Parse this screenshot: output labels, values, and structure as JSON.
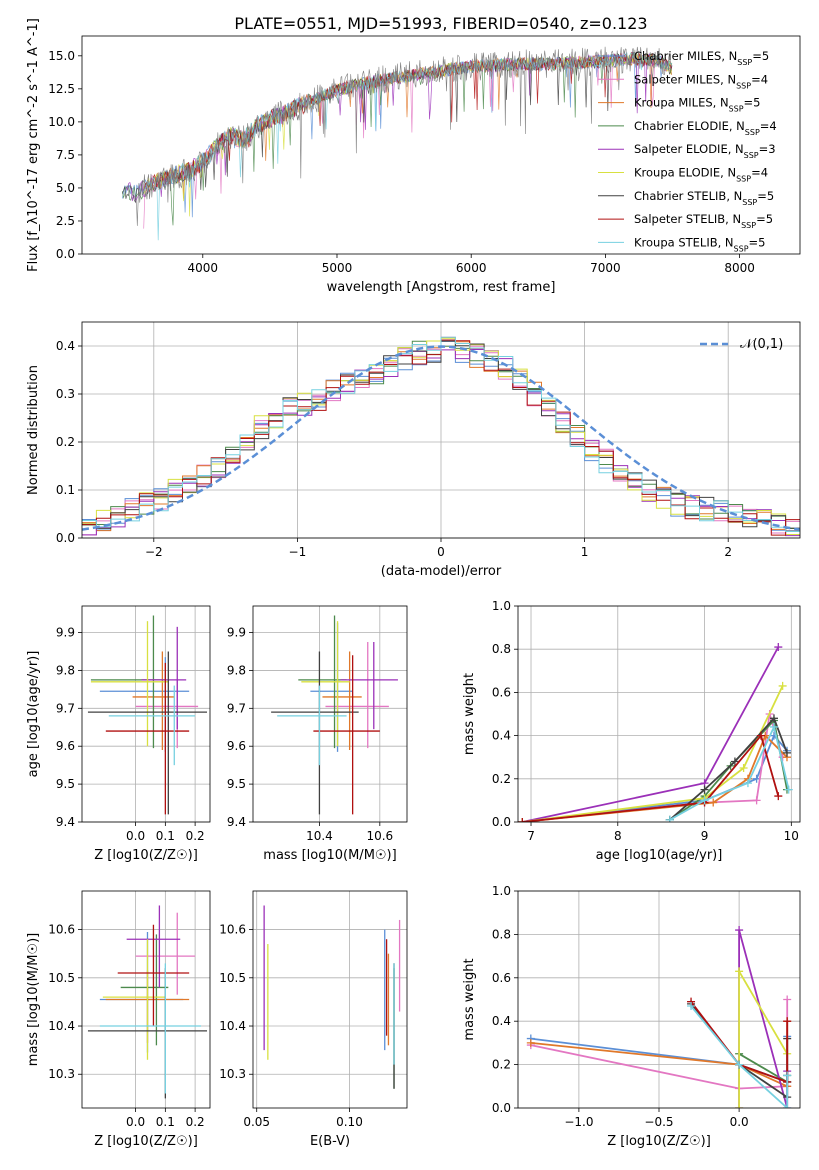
{
  "title": "PLATE=0551, MJD=51993, FIBERID=0540, z=0.123",
  "models": [
    {
      "name": "Chabrier MILES",
      "nssp": "5",
      "color": "#5b8fd6"
    },
    {
      "name": "Salpeter MILES",
      "nssp": "4",
      "color": "#e377c2"
    },
    {
      "name": "Kroupa MILES",
      "nssp": "5",
      "color": "#e0782a"
    },
    {
      "name": "Chabrier ELODIE",
      "nssp": "4",
      "color": "#4c8a4c"
    },
    {
      "name": "Salpeter ELODIE",
      "nssp": "3",
      "color": "#9b30b8"
    },
    {
      "name": "Kroupa ELODIE",
      "nssp": "4",
      "color": "#d8e040"
    },
    {
      "name": "Chabrier STELIB",
      "nssp": "5",
      "color": "#404040"
    },
    {
      "name": "Salpeter STELIB",
      "nssp": "5",
      "color": "#b01010"
    },
    {
      "name": "Kroupa STELIB",
      "nssp": "5",
      "color": "#76d0e0"
    }
  ],
  "chart_data": [
    {
      "id": "spectrum",
      "type": "line",
      "xlabel": "wavelength [Angstrom, rest frame]",
      "ylabel": "Flux [f_λ10^-17 erg cm^-2 s^-1 A^-1]",
      "xlim": [
        3100,
        8450
      ],
      "ylim": [
        0,
        16.5
      ],
      "xticks": [
        4000,
        5000,
        6000,
        7000,
        8000
      ],
      "yticks": [
        "0.0",
        "2.5",
        "5.0",
        "7.5",
        "10.0",
        "12.5",
        "15.0"
      ],
      "grid": false,
      "legend": "upper right",
      "x": [
        3400,
        3500,
        3600,
        3700,
        3800,
        3900,
        4000,
        4100,
        4200,
        4300,
        4400,
        4500,
        4600,
        4700,
        4800,
        4900,
        5000,
        5200,
        5400,
        5600,
        5800,
        6000,
        6200,
        6400,
        6600,
        6800,
        7000,
        7200,
        7400,
        7500
      ],
      "y": [
        4.9,
        4.6,
        5.2,
        5.6,
        6.0,
        6.3,
        7.0,
        8.1,
        9.0,
        8.6,
        9.7,
        10.2,
        10.6,
        11.1,
        11.5,
        12.0,
        12.4,
        12.9,
        13.3,
        13.6,
        13.9,
        14.2,
        14.3,
        14.4,
        14.4,
        14.5,
        14.6,
        14.8,
        14.6,
        14.0
      ]
    },
    {
      "id": "residuals",
      "type": "bar",
      "xlabel": "(data-model)/error",
      "ylabel": "Normed distribution",
      "xlim": [
        -2.5,
        2.5
      ],
      "ylim": [
        0,
        0.45
      ],
      "xticks": [
        "−2",
        "−1",
        "0",
        "1",
        "2"
      ],
      "yticks": [
        "0.0",
        "0.1",
        "0.2",
        "0.3",
        "0.4"
      ],
      "grid": true,
      "legend": "upper right",
      "curve_label": "𝒩(0,1)",
      "bin_width": 0.1,
      "bins": [
        -2.45,
        -2.35,
        -2.25,
        -2.15,
        -2.05,
        -1.95,
        -1.85,
        -1.75,
        -1.65,
        -1.55,
        -1.45,
        -1.35,
        -1.25,
        -1.15,
        -1.05,
        -0.95,
        -0.85,
        -0.75,
        -0.65,
        -0.55,
        -0.45,
        -0.35,
        -0.25,
        -0.15,
        -0.05,
        0.05,
        0.15,
        0.25,
        0.35,
        0.45,
        0.55,
        0.65,
        0.75,
        0.85,
        0.95,
        1.05,
        1.15,
        1.25,
        1.35,
        1.45,
        1.55,
        1.65,
        1.75,
        1.85,
        1.95,
        2.05,
        2.15,
        2.25,
        2.35,
        2.45
      ],
      "values": [
        0.025,
        0.035,
        0.045,
        0.06,
        0.07,
        0.08,
        0.1,
        0.11,
        0.13,
        0.15,
        0.17,
        0.2,
        0.23,
        0.25,
        0.27,
        0.28,
        0.29,
        0.31,
        0.32,
        0.33,
        0.345,
        0.36,
        0.375,
        0.385,
        0.39,
        0.395,
        0.39,
        0.38,
        0.37,
        0.355,
        0.33,
        0.3,
        0.27,
        0.24,
        0.21,
        0.18,
        0.16,
        0.14,
        0.115,
        0.1,
        0.085,
        0.07,
        0.065,
        0.06,
        0.055,
        0.05,
        0.04,
        0.035,
        0.03,
        0.025
      ]
    },
    {
      "id": "age_vs_Z",
      "type": "scatter",
      "xlabel": "Z [log10(Z/Z☉)]",
      "ylabel": "age  [log10(age/yr)]",
      "xlim": [
        -0.18,
        0.25
      ],
      "ylim": [
        9.4,
        9.97
      ],
      "xticks": [
        "0.0",
        "0.1",
        "0.2"
      ],
      "yticks": [
        "9.4",
        "9.5",
        "9.6",
        "9.7",
        "9.8",
        "9.9"
      ],
      "grid": true,
      "points": [
        {
          "x": 0.1,
          "y": 9.745,
          "xerr": [
            0.22,
            0.08
          ],
          "yerr": [
            0.16,
            0.09
          ]
        },
        {
          "x": 0.14,
          "y": 9.705,
          "xerr": [
            0.14,
            0.07
          ],
          "yerr": [
            0.11,
            0.07
          ]
        },
        {
          "x": 0.09,
          "y": 9.73,
          "xerr": [
            0.1,
            0.04
          ],
          "yerr": [
            0.14,
            0.12
          ]
        },
        {
          "x": 0.06,
          "y": 9.775,
          "xerr": [
            0.21,
            0.04
          ],
          "yerr": [
            0.18,
            0.17
          ]
        },
        {
          "x": 0.14,
          "y": 9.775,
          "xerr": [
            0.12,
            0.03
          ],
          "yerr": [
            0.13,
            0.14
          ]
        },
        {
          "x": 0.04,
          "y": 9.77,
          "xerr": [
            0.19,
            0.07
          ],
          "yerr": [
            0.17,
            0.16
          ]
        },
        {
          "x": 0.11,
          "y": 9.69,
          "xerr": [
            0.27,
            0.13
          ],
          "yerr": [
            0.27,
            0.16
          ]
        },
        {
          "x": 0.1,
          "y": 9.64,
          "xerr": [
            0.2,
            0.08
          ],
          "yerr": [
            0.22,
            0.18
          ]
        },
        {
          "x": 0.13,
          "y": 9.68,
          "xerr": [
            0.22,
            0.07
          ],
          "yerr": [
            0.13,
            0.08
          ]
        }
      ]
    },
    {
      "id": "age_vs_mass",
      "type": "scatter",
      "xlabel": "mass [log10(M/M☉)]",
      "ylabel": "",
      "xlim": [
        10.18,
        10.69
      ],
      "ylim": [
        9.4,
        9.97
      ],
      "xticks": [
        "10.4",
        "10.6"
      ],
      "yticks": [
        "9.4",
        "9.5",
        "9.6",
        "9.7",
        "9.8",
        "9.9"
      ],
      "grid": true,
      "points": [
        {
          "x": 10.46,
          "y": 9.745,
          "xerr": [
            0.09,
            0.05
          ],
          "yerr": [
            0.16,
            0.18
          ]
        },
        {
          "x": 10.56,
          "y": 9.705,
          "xerr": [
            0.14,
            0.07
          ],
          "yerr": [
            0.11,
            0.17
          ]
        },
        {
          "x": 10.5,
          "y": 9.73,
          "xerr": [
            0.09,
            0.04
          ],
          "yerr": [
            0.14,
            0.12
          ]
        },
        {
          "x": 10.45,
          "y": 9.775,
          "xerr": [
            0.12,
            0.04
          ],
          "yerr": [
            0.18,
            0.17
          ]
        },
        {
          "x": 10.58,
          "y": 9.775,
          "xerr": [
            0.11,
            0.08
          ],
          "yerr": [
            0.13,
            0.1
          ]
        },
        {
          "x": 10.46,
          "y": 9.77,
          "xerr": [
            0.12,
            0.04
          ],
          "yerr": [
            0.17,
            0.16
          ]
        },
        {
          "x": 10.4,
          "y": 9.69,
          "xerr": [
            0.16,
            0.13
          ],
          "yerr": [
            0.27,
            0.16
          ]
        },
        {
          "x": 10.51,
          "y": 9.64,
          "xerr": [
            0.13,
            0.09
          ],
          "yerr": [
            0.22,
            0.2
          ]
        },
        {
          "x": 10.4,
          "y": 9.68,
          "xerr": [
            0.14,
            0.09
          ],
          "yerr": [
            0.13,
            0.08
          ]
        }
      ]
    },
    {
      "id": "mass_weight_vs_age",
      "type": "line",
      "xlabel": "age  [log10(age/yr)]",
      "ylabel": "mass weight",
      "xlim": [
        6.85,
        10.1
      ],
      "ylim": [
        0,
        1
      ],
      "xticks": [
        "7",
        "8",
        "9",
        "10"
      ],
      "yticks": [
        "0.0",
        "0.2",
        "0.4",
        "0.6",
        "0.8",
        "1.0"
      ],
      "grid": true,
      "series": [
        {
          "x": [
            6.9,
            9.0,
            9.6,
            9.8,
            9.95
          ],
          "y": [
            0.0,
            0.1,
            0.2,
            0.4,
            0.33
          ]
        },
        {
          "x": [
            6.9,
            9.0,
            9.6,
            9.75,
            9.9
          ],
          "y": [
            0.0,
            0.09,
            0.1,
            0.5,
            0.3
          ]
        },
        {
          "x": [
            6.9,
            9.1,
            9.5,
            9.7,
            9.95
          ],
          "y": [
            0.0,
            0.09,
            0.2,
            0.4,
            0.3
          ]
        },
        {
          "x": [
            8.6,
            9.0,
            9.3,
            9.8,
            9.95
          ],
          "y": [
            0.01,
            0.12,
            0.26,
            0.47,
            0.15
          ]
        },
        {
          "x": [
            6.9,
            9.0,
            9.85
          ],
          "y": [
            0.0,
            0.18,
            0.81
          ]
        },
        {
          "x": [
            6.9,
            9.0,
            9.45,
            9.9
          ],
          "y": [
            0.0,
            0.11,
            0.25,
            0.63
          ]
        },
        {
          "x": [
            8.6,
            9.0,
            9.35,
            9.8,
            9.95
          ],
          "y": [
            0.01,
            0.15,
            0.28,
            0.48,
            0.32
          ]
        },
        {
          "x": [
            6.9,
            9.0,
            9.65,
            9.85
          ],
          "y": [
            0.0,
            0.09,
            0.4,
            0.12
          ]
        },
        {
          "x": [
            8.6,
            9.0,
            9.5,
            9.8,
            9.97
          ],
          "y": [
            0.01,
            0.1,
            0.18,
            0.44,
            0.15
          ]
        }
      ]
    },
    {
      "id": "mass_vs_Z",
      "type": "scatter",
      "xlabel": "Z [log10(Z/Z☉)]",
      "ylabel": "mass [log10(M/M☉)]",
      "xlim": [
        -0.18,
        0.25
      ],
      "ylim": [
        10.23,
        10.68
      ],
      "xticks": [
        "0.0",
        "0.1",
        "0.2"
      ],
      "yticks": [
        "10.3",
        "10.4",
        "10.5",
        "10.6"
      ],
      "grid": true,
      "points": [
        {
          "x": 0.04,
          "y": 10.455,
          "xerr": [
            0.16,
            0.12
          ],
          "yerr": [
            0.11,
            0.14
          ]
        },
        {
          "x": 0.14,
          "y": 10.545,
          "xerr": [
            0.14,
            0.06
          ],
          "yerr": [
            0.08,
            0.09
          ]
        },
        {
          "x": 0.04,
          "y": 10.455,
          "xerr": [
            0.14,
            0.14
          ],
          "yerr": [
            0.09,
            0.06
          ]
        },
        {
          "x": 0.07,
          "y": 10.48,
          "xerr": [
            0.12,
            0.04
          ],
          "yerr": [
            0.12,
            0.11
          ]
        },
        {
          "x": 0.08,
          "y": 10.58,
          "xerr": [
            0.11,
            0.07
          ],
          "yerr": [
            0.1,
            0.07
          ]
        },
        {
          "x": 0.04,
          "y": 10.46,
          "xerr": [
            0.15,
            0.06
          ],
          "yerr": [
            0.13,
            0.12
          ]
        },
        {
          "x": 0.1,
          "y": 10.39,
          "xerr": [
            0.26,
            0.14
          ],
          "yerr": [
            0.14,
            0.13
          ]
        },
        {
          "x": 0.06,
          "y": 10.51,
          "xerr": [
            0.12,
            0.12
          ],
          "yerr": [
            0.11,
            0.1
          ]
        },
        {
          "x": 0.1,
          "y": 10.4,
          "xerr": [
            0.22,
            0.12
          ],
          "yerr": [
            0.14,
            0.13
          ]
        }
      ]
    },
    {
      "id": "mass_vs_ebv",
      "type": "scatter",
      "xlabel": "E(B-V)",
      "ylabel": "",
      "xlim": [
        0.048,
        0.131
      ],
      "ylim": [
        10.23,
        10.68
      ],
      "xticks": [
        "0.05",
        "0.10"
      ],
      "yticks": [
        "10.3",
        "10.4",
        "10.5",
        "10.6"
      ],
      "grid": true,
      "points": [
        {
          "x": 0.119,
          "y": 10.46,
          "yerr": [
            0.11,
            0.14
          ]
        },
        {
          "x": 0.127,
          "y": 10.52,
          "yerr": [
            0.09,
            0.1
          ]
        },
        {
          "x": 0.121,
          "y": 10.45,
          "yerr": [
            0.09,
            0.1
          ]
        },
        {
          "x": 0.124,
          "y": 10.4,
          "yerr": [
            0.13,
            0.12
          ]
        },
        {
          "x": 0.054,
          "y": 10.5,
          "yerr": [
            0.15,
            0.15
          ]
        },
        {
          "x": 0.056,
          "y": 10.45,
          "yerr": [
            0.12,
            0.12
          ]
        },
        {
          "x": 0.124,
          "y": 10.41,
          "yerr": [
            0.14,
            0.12
          ]
        },
        {
          "x": 0.12,
          "y": 10.48,
          "yerr": [
            0.1,
            0.1
          ]
        },
        {
          "x": 0.124,
          "y": 10.45,
          "yerr": [
            0.13,
            0.08
          ]
        }
      ]
    },
    {
      "id": "mass_weight_vs_Z",
      "type": "line",
      "xlabel": "Z [log10(Z/Z☉)]",
      "ylabel": "mass weight",
      "xlim": [
        -1.38,
        0.38
      ],
      "ylim": [
        0,
        1
      ],
      "xticks": [
        "−1.0",
        "−0.5",
        "0.0"
      ],
      "yticks": [
        "0.0",
        "0.2",
        "0.4",
        "0.6",
        "0.8",
        "1.0"
      ],
      "grid": true,
      "series": [
        {
          "x": [
            -1.3,
            0.0,
            0.3,
            0.3
          ],
          "y": [
            0.32,
            0.2,
            0.12,
            0.33
          ]
        },
        {
          "x": [
            -1.3,
            0.0,
            0.3,
            0.3
          ],
          "y": [
            0.29,
            0.09,
            0.1,
            0.5
          ]
        },
        {
          "x": [
            -1.3,
            0.0,
            0.3,
            0.3
          ],
          "y": [
            0.3,
            0.2,
            0.1,
            0.4
          ]
        },
        {
          "x": [
            0.0,
            0.3,
            0.3
          ],
          "y": [
            0.25,
            0.12,
            0.15
          ]
        },
        {
          "x": [
            0.0,
            0.0,
            0.3,
            0.3
          ],
          "y": [
            0.0,
            0.82,
            0.0,
            0.17
          ]
        },
        {
          "x": [
            0.0,
            0.0,
            0.3
          ],
          "y": [
            0.0,
            0.63,
            0.25
          ]
        },
        {
          "x": [
            -0.3,
            0.0,
            0.3,
            0.3
          ],
          "y": [
            0.48,
            0.2,
            0.05,
            0.32
          ]
        },
        {
          "x": [
            -0.3,
            0.0,
            0.3,
            0.3
          ],
          "y": [
            0.49,
            0.2,
            0.12,
            0.4
          ]
        },
        {
          "x": [
            -0.3,
            0.0,
            0.3,
            0.3
          ],
          "y": [
            0.47,
            0.2,
            0.0,
            0.15
          ]
        }
      ]
    }
  ]
}
